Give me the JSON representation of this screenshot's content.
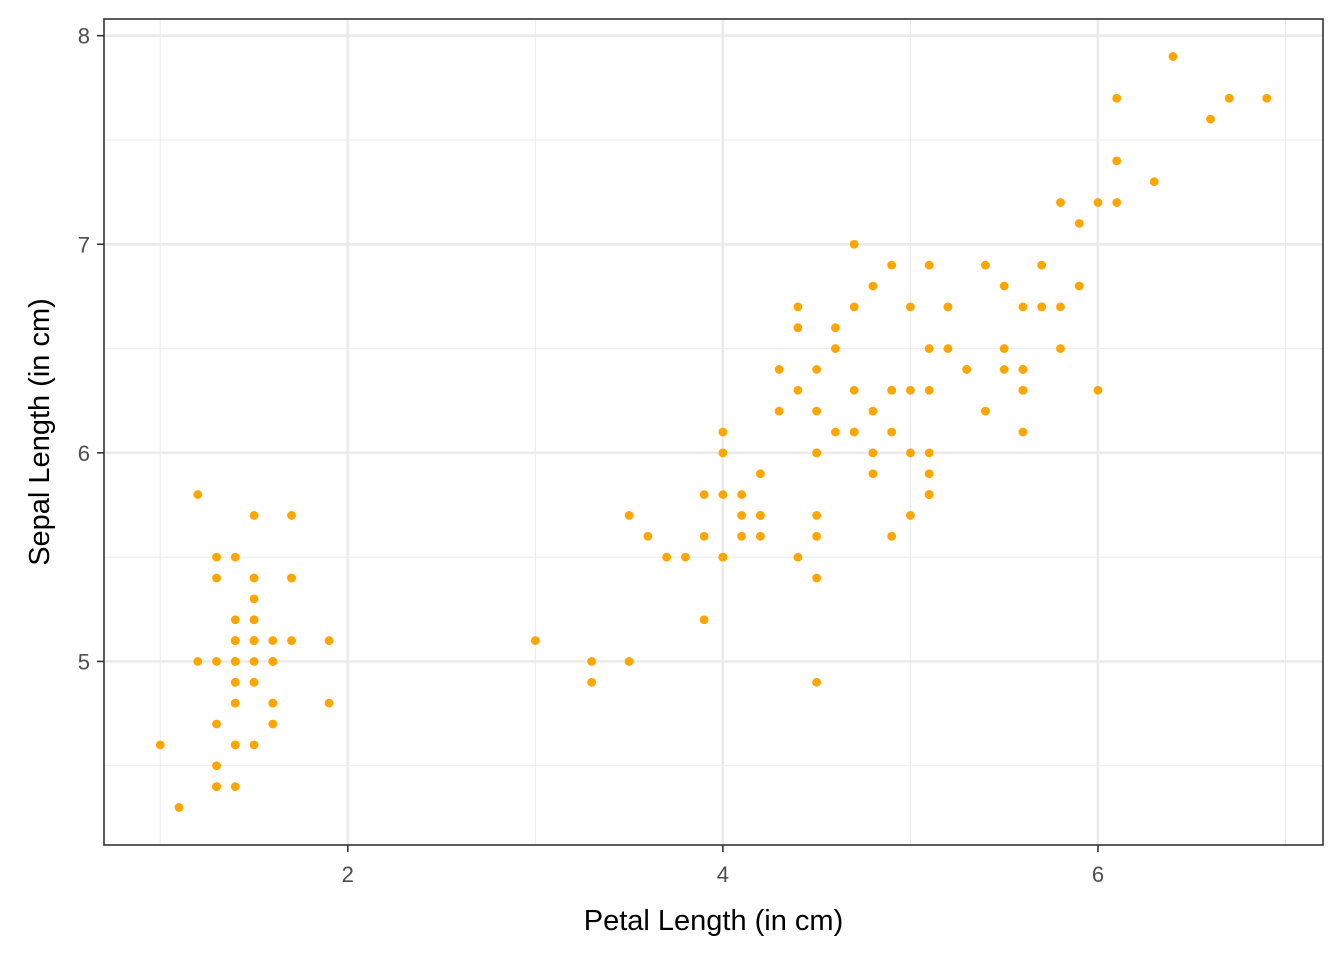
{
  "chart_data": {
    "type": "scatter",
    "title": "",
    "xlabel": "Petal Length (in cm)",
    "ylabel": "Sepal Length (in cm)",
    "xlim": [
      0.7,
      7.2
    ],
    "ylim": [
      4.12,
      8.08
    ],
    "x_ticks": [
      2,
      4,
      6
    ],
    "x_tick_labels": [
      "2",
      "4",
      "6"
    ],
    "y_ticks": [
      5,
      6,
      7,
      8
    ],
    "y_tick_labels": [
      "5",
      "6",
      "7",
      "8"
    ],
    "grid": true,
    "legend": "none",
    "point_color": "#FFA500",
    "series": [
      {
        "x": [
          1.4,
          1.4,
          1.3,
          1.5,
          1.4,
          1.7,
          1.4,
          1.5,
          1.4,
          1.5,
          1.5,
          1.6,
          1.4,
          1.1,
          1.2,
          1.5,
          1.3,
          1.4,
          1.7,
          1.5,
          1.7,
          1.5,
          1.0,
          1.7,
          1.9,
          1.6,
          1.6,
          1.5,
          1.4,
          1.6,
          1.6,
          1.5,
          1.5,
          1.4,
          1.5,
          1.2,
          1.3,
          1.4,
          1.3,
          1.5,
          1.3,
          1.3,
          1.3,
          1.6,
          1.9,
          1.4,
          1.6,
          1.4,
          1.5,
          1.4,
          4.7,
          4.5,
          4.9,
          4.0,
          4.6,
          4.5,
          4.7,
          3.3,
          4.6,
          3.9,
          3.5,
          4.2,
          4.0,
          4.7,
          3.6,
          4.4,
          4.5,
          4.1,
          4.5,
          3.9,
          4.8,
          4.0,
          4.9,
          4.7,
          4.3,
          4.4,
          4.8,
          5.0,
          4.5,
          3.5,
          3.8,
          3.7,
          3.9,
          5.1,
          4.5,
          4.5,
          4.7,
          4.4,
          4.1,
          4.0,
          4.4,
          4.6,
          4.0,
          3.3,
          4.2,
          4.2,
          4.2,
          4.3,
          3.0,
          4.1,
          6.0,
          5.1,
          5.9,
          5.6,
          5.8,
          6.6,
          4.5,
          6.3,
          5.8,
          6.1,
          5.1,
          5.3,
          5.5,
          5.0,
          5.1,
          5.3,
          5.5,
          6.7,
          6.9,
          5.0,
          5.7,
          4.9,
          6.7,
          4.9,
          5.7,
          6.0,
          4.8,
          4.9,
          5.6,
          5.8,
          6.1,
          6.4,
          5.6,
          5.1,
          5.6,
          6.1,
          5.6,
          5.5,
          4.8,
          5.4,
          5.6,
          5.1,
          5.1,
          5.9,
          5.7,
          5.2,
          5.0,
          5.2,
          5.4,
          5.1
        ],
        "y": [
          5.1,
          4.9,
          4.7,
          4.6,
          5.0,
          5.4,
          4.6,
          5.0,
          4.4,
          4.9,
          5.4,
          4.8,
          4.8,
          4.3,
          5.8,
          5.7,
          5.4,
          5.1,
          5.7,
          5.1,
          5.4,
          5.1,
          4.6,
          5.1,
          4.8,
          5.0,
          5.0,
          5.2,
          5.2,
          4.7,
          4.8,
          5.4,
          5.2,
          5.5,
          4.9,
          5.0,
          5.5,
          4.9,
          4.4,
          5.1,
          5.0,
          4.5,
          4.4,
          5.0,
          5.1,
          4.8,
          5.1,
          4.6,
          5.3,
          5.0,
          7.0,
          6.4,
          6.9,
          5.5,
          6.5,
          5.7,
          6.3,
          4.9,
          6.6,
          5.2,
          5.0,
          5.9,
          6.0,
          6.1,
          5.6,
          6.7,
          5.6,
          5.8,
          6.2,
          5.6,
          5.9,
          6.1,
          6.3,
          6.1,
          6.4,
          6.6,
          6.8,
          6.7,
          6.0,
          5.7,
          5.5,
          5.5,
          5.8,
          6.0,
          5.4,
          6.0,
          6.7,
          6.3,
          5.6,
          5.5,
          5.5,
          6.1,
          5.8,
          5.0,
          5.6,
          5.7,
          5.7,
          6.2,
          5.1,
          5.7,
          6.3,
          5.8,
          7.1,
          6.3,
          6.5,
          7.6,
          4.9,
          7.3,
          6.7,
          7.2,
          6.5,
          6.4,
          6.8,
          5.7,
          5.8,
          6.4,
          6.5,
          7.7,
          7.7,
          6.0,
          6.9,
          5.6,
          7.7,
          6.3,
          6.7,
          7.2,
          6.2,
          6.1,
          6.4,
          7.2,
          7.4,
          7.9,
          6.4,
          6.3,
          6.1,
          7.7,
          6.3,
          6.4,
          6.0,
          6.9,
          6.7,
          6.9,
          5.8,
          6.8,
          6.7,
          6.7,
          6.3,
          6.5,
          6.2,
          5.9
        ]
      }
    ]
  }
}
